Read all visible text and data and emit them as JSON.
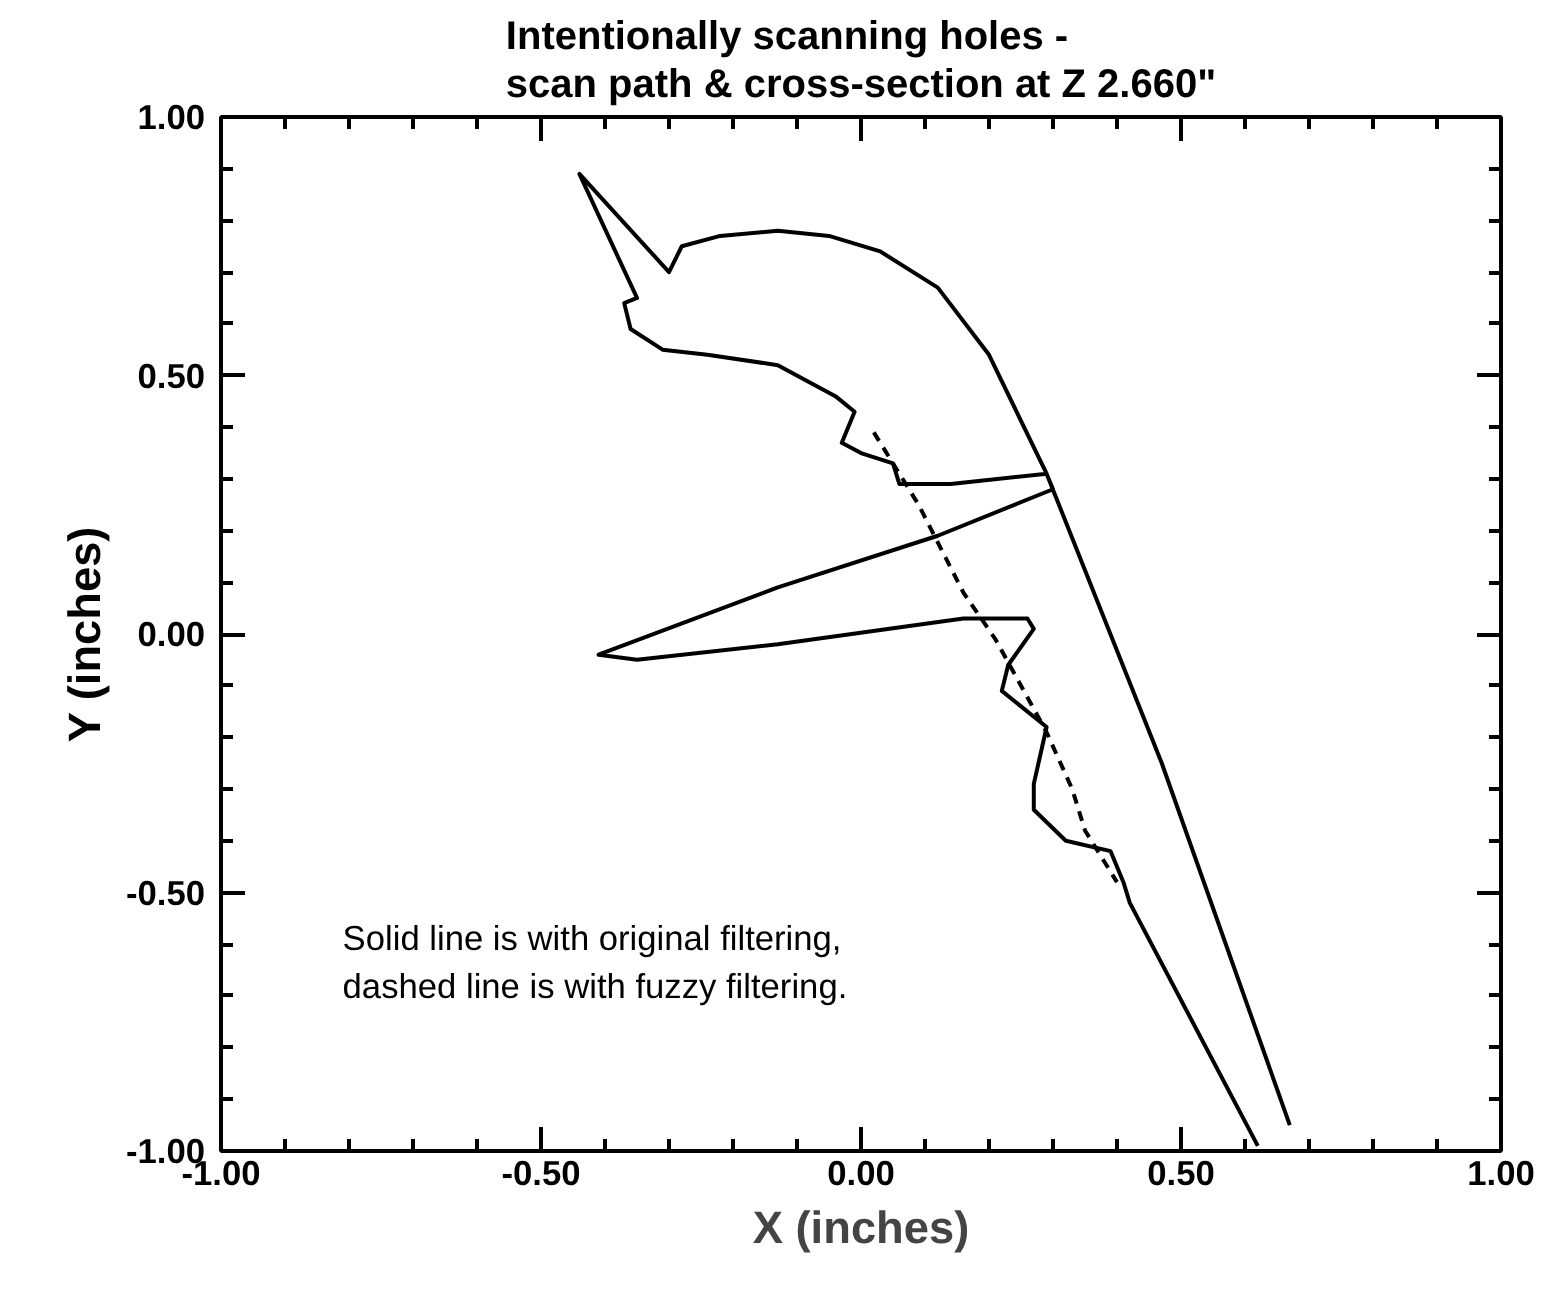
{
  "chart_data": {
    "type": "line",
    "title": "Intentionally scanning holes -\nscan path & cross-section at Z 2.660\"",
    "xlabel": "X (inches)",
    "ylabel": "Y (inches)",
    "annotations": [
      "Solid line is with original filtering,\ndashed line is with fuzzy filtering."
    ],
    "xlim": [
      -1,
      1
    ],
    "ylim": [
      -1,
      1
    ],
    "xticks": [
      {
        "value": -1,
        "label": "-1.00"
      },
      {
        "value": -0.9,
        "label": null
      },
      {
        "value": -0.8,
        "label": null
      },
      {
        "value": -0.7,
        "label": null
      },
      {
        "value": -0.6,
        "label": null
      },
      {
        "value": -0.5,
        "label": "-0.50"
      },
      {
        "value": -0.4,
        "label": null
      },
      {
        "value": -0.3,
        "label": null
      },
      {
        "value": -0.2,
        "label": null
      },
      {
        "value": -0.1,
        "label": null
      },
      {
        "value": 0,
        "label": "0.00"
      },
      {
        "value": 0.1,
        "label": null
      },
      {
        "value": 0.2,
        "label": null
      },
      {
        "value": 0.3,
        "label": null
      },
      {
        "value": 0.4,
        "label": null
      },
      {
        "value": 0.5,
        "label": "0.50"
      },
      {
        "value": 0.6,
        "label": null
      },
      {
        "value": 0.7,
        "label": null
      },
      {
        "value": 0.8,
        "label": null
      },
      {
        "value": 0.9,
        "label": null
      },
      {
        "value": 1,
        "label": "1.00"
      }
    ],
    "yticks": [
      {
        "value": -1,
        "label": "-1.00"
      },
      {
        "value": -0.9,
        "label": null
      },
      {
        "value": -0.8,
        "label": null
      },
      {
        "value": -0.7,
        "label": null
      },
      {
        "value": -0.6,
        "label": null
      },
      {
        "value": -0.5,
        "label": "-0.50"
      },
      {
        "value": -0.4,
        "label": null
      },
      {
        "value": -0.3,
        "label": null
      },
      {
        "value": -0.2,
        "label": null
      },
      {
        "value": -0.1,
        "label": null
      },
      {
        "value": 0,
        "label": "0.00"
      },
      {
        "value": 0.1,
        "label": null
      },
      {
        "value": 0.2,
        "label": null
      },
      {
        "value": 0.3,
        "label": null
      },
      {
        "value": 0.4,
        "label": null
      },
      {
        "value": 0.5,
        "label": "0.50"
      },
      {
        "value": 0.6,
        "label": null
      },
      {
        "value": 0.7,
        "label": null
      },
      {
        "value": 0.8,
        "label": null
      },
      {
        "value": 0.9,
        "label": null
      },
      {
        "value": 1,
        "label": "1.00"
      }
    ],
    "grid": false,
    "series": [
      {
        "color": "#000000",
        "line_style": "solid",
        "x": [
          0.67,
          0.47,
          0.38,
          0.29,
          0.2,
          0.12,
          0.03,
          -0.05,
          -0.13,
          -0.22,
          -0.28,
          -0.3,
          -0.44,
          -0.35,
          -0.37,
          -0.36,
          -0.31,
          -0.24,
          -0.13,
          -0.04,
          -0.01,
          -0.03,
          0.0,
          0.05,
          0.06,
          0.14,
          0.29,
          0.3,
          0.12,
          -0.13,
          -0.41,
          -0.35,
          -0.13,
          0.16,
          0.26,
          0.27,
          0.23,
          0.22,
          0.29,
          0.27,
          0.27,
          0.32,
          0.39,
          0.41,
          0.42,
          0.62
        ],
        "values": [
          -0.95,
          -0.25,
          0.03,
          0.31,
          0.54,
          0.67,
          0.74,
          0.77,
          0.78,
          0.77,
          0.75,
          0.7,
          0.89,
          0.65,
          0.64,
          0.59,
          0.55,
          0.54,
          0.52,
          0.46,
          0.43,
          0.37,
          0.35,
          0.33,
          0.29,
          0.29,
          0.31,
          0.28,
          0.19,
          0.09,
          -0.04,
          -0.05,
          -0.02,
          0.03,
          0.03,
          0.01,
          -0.06,
          -0.11,
          -0.18,
          -0.29,
          -0.34,
          -0.4,
          -0.42,
          -0.48,
          -0.52,
          -0.99
        ]
      },
      {
        "color": "#000000",
        "line_style": "dashed",
        "x": [
          0.02,
          0.09,
          0.16,
          0.21,
          0.29,
          0.33,
          0.35,
          0.4
        ],
        "values": [
          0.39,
          0.25,
          0.08,
          -0.01,
          -0.19,
          -0.3,
          -0.38,
          -0.48
        ]
      }
    ]
  }
}
